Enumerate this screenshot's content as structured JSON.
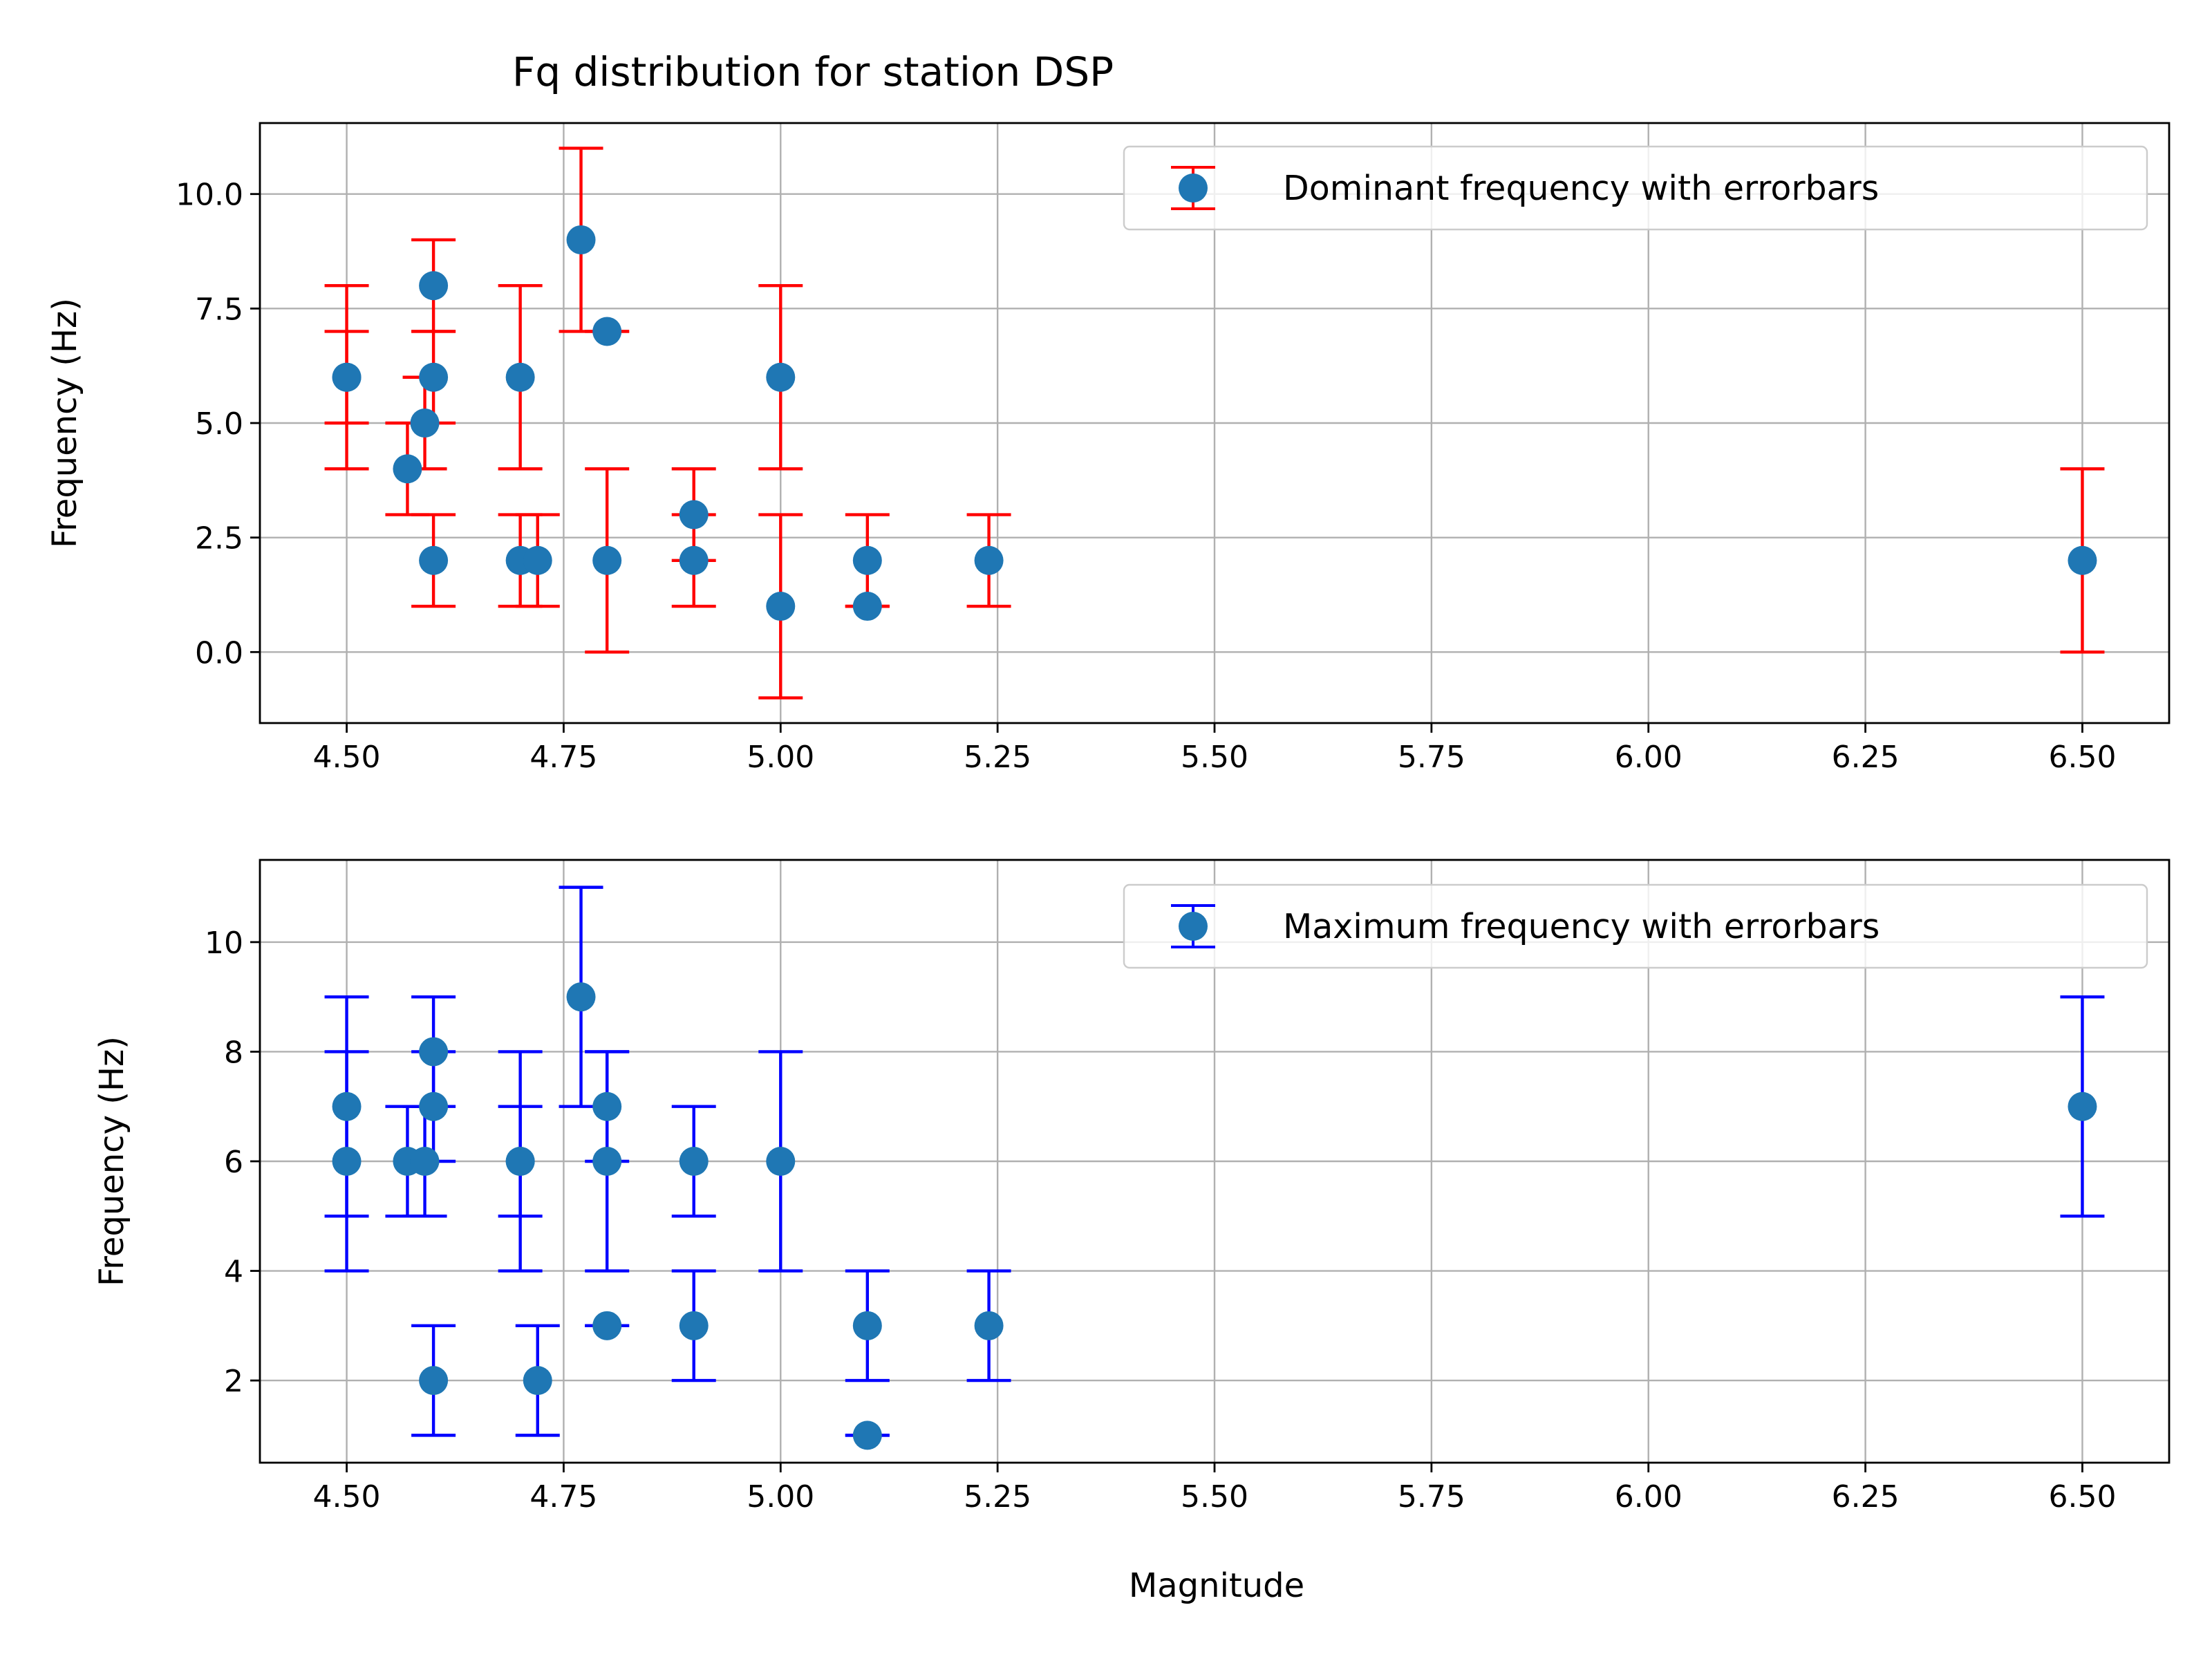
{
  "chart_data": [
    {
      "type": "scatter",
      "title": "Fq distribution for station DSP",
      "xlabel": "",
      "ylabel": "Frequency (Hz)",
      "xlim": [
        4.4,
        6.6
      ],
      "ylim": [
        -1.55,
        11.55
      ],
      "xticks": [
        4.5,
        4.75,
        5.0,
        5.25,
        5.5,
        5.75,
        6.0,
        6.25,
        6.5
      ],
      "xtick_labels": [
        "4.50",
        "4.75",
        "5.00",
        "5.25",
        "5.50",
        "5.75",
        "6.00",
        "6.25",
        "6.50"
      ],
      "yticks": [
        0,
        2.5,
        5,
        7.5,
        10
      ],
      "ytick_labels": [
        "0.0",
        "2.5",
        "5.0",
        "7.5",
        "10.0"
      ],
      "grid": true,
      "legend": {
        "position": "top-right"
      },
      "series": [
        {
          "name": "Dominant frequency with errorbars",
          "marker_color": "#1f77b4",
          "errorbar_color": "#ff0000",
          "points": [
            {
              "x": 4.5,
              "y": 6,
              "ylow": 4,
              "yhigh": 8
            },
            {
              "x": 4.5,
              "y": 6,
              "ylow": 5,
              "yhigh": 7
            },
            {
              "x": 4.57,
              "y": 4,
              "ylow": 3,
              "yhigh": 5
            },
            {
              "x": 4.59,
              "y": 5,
              "ylow": 4,
              "yhigh": 6
            },
            {
              "x": 4.6,
              "y": 8,
              "ylow": 7,
              "yhigh": 9
            },
            {
              "x": 4.6,
              "y": 6,
              "ylow": 5,
              "yhigh": 7
            },
            {
              "x": 4.6,
              "y": 2,
              "ylow": 1,
              "yhigh": 3
            },
            {
              "x": 4.7,
              "y": 6,
              "ylow": 4,
              "yhigh": 8
            },
            {
              "x": 4.7,
              "y": 2,
              "ylow": 1,
              "yhigh": 3
            },
            {
              "x": 4.72,
              "y": 2,
              "ylow": 1,
              "yhigh": 3
            },
            {
              "x": 4.77,
              "y": 9,
              "ylow": 7,
              "yhigh": 11
            },
            {
              "x": 4.8,
              "y": 7,
              "ylow": 7,
              "yhigh": 7
            },
            {
              "x": 4.8,
              "y": 2,
              "ylow": 0,
              "yhigh": 4
            },
            {
              "x": 4.9,
              "y": 3,
              "ylow": 2,
              "yhigh": 4
            },
            {
              "x": 4.9,
              "y": 2,
              "ylow": 1,
              "yhigh": 3
            },
            {
              "x": 5.0,
              "y": 6,
              "ylow": 4,
              "yhigh": 8
            },
            {
              "x": 5.0,
              "y": 1,
              "ylow": -1,
              "yhigh": 3
            },
            {
              "x": 5.1,
              "y": 2,
              "ylow": 1,
              "yhigh": 3
            },
            {
              "x": 5.1,
              "y": 1,
              "ylow": 1,
              "yhigh": 1
            },
            {
              "x": 5.24,
              "y": 2,
              "ylow": 1,
              "yhigh": 3
            },
            {
              "x": 6.5,
              "y": 2,
              "ylow": 0,
              "yhigh": 4
            }
          ]
        }
      ]
    },
    {
      "type": "scatter",
      "title": "",
      "xlabel": "Magnitude",
      "ylabel": "Frequency (Hz)",
      "xlim": [
        4.4,
        6.6
      ],
      "ylim": [
        0.5,
        11.5
      ],
      "xticks": [
        4.5,
        4.75,
        5.0,
        5.25,
        5.5,
        5.75,
        6.0,
        6.25,
        6.5
      ],
      "xtick_labels": [
        "4.50",
        "4.75",
        "5.00",
        "5.25",
        "5.50",
        "5.75",
        "6.00",
        "6.25",
        "6.50"
      ],
      "yticks": [
        2,
        4,
        6,
        8,
        10
      ],
      "ytick_labels": [
        "2",
        "4",
        "6",
        "8",
        "10"
      ],
      "grid": true,
      "legend": {
        "position": "top-right"
      },
      "series": [
        {
          "name": "Maximum frequency with errorbars",
          "marker_color": "#1f77b4",
          "errorbar_color": "#0000ff",
          "points": [
            {
              "x": 4.5,
              "y": 7,
              "ylow": 5,
              "yhigh": 9
            },
            {
              "x": 4.5,
              "y": 6,
              "ylow": 4,
              "yhigh": 8
            },
            {
              "x": 4.57,
              "y": 6,
              "ylow": 5,
              "yhigh": 7
            },
            {
              "x": 4.59,
              "y": 6,
              "ylow": 5,
              "yhigh": 7
            },
            {
              "x": 4.6,
              "y": 8,
              "ylow": 7,
              "yhigh": 9
            },
            {
              "x": 4.6,
              "y": 7,
              "ylow": 6,
              "yhigh": 8
            },
            {
              "x": 4.6,
              "y": 2,
              "ylow": 1,
              "yhigh": 3
            },
            {
              "x": 4.7,
              "y": 6,
              "ylow": 5,
              "yhigh": 7
            },
            {
              "x": 4.7,
              "y": 6,
              "ylow": 4,
              "yhigh": 8
            },
            {
              "x": 4.72,
              "y": 2,
              "ylow": 1,
              "yhigh": 3
            },
            {
              "x": 4.77,
              "y": 9,
              "ylow": 7,
              "yhigh": 11
            },
            {
              "x": 4.8,
              "y": 7,
              "ylow": 6,
              "yhigh": 8
            },
            {
              "x": 4.8,
              "y": 6,
              "ylow": 4,
              "yhigh": 8
            },
            {
              "x": 4.8,
              "y": 3,
              "ylow": 3,
              "yhigh": 3
            },
            {
              "x": 4.9,
              "y": 6,
              "ylow": 5,
              "yhigh": 7
            },
            {
              "x": 4.9,
              "y": 3,
              "ylow": 2,
              "yhigh": 4
            },
            {
              "x": 5.0,
              "y": 6,
              "ylow": 4,
              "yhigh": 8
            },
            {
              "x": 5.1,
              "y": 3,
              "ylow": 2,
              "yhigh": 4
            },
            {
              "x": 5.1,
              "y": 1,
              "ylow": 1,
              "yhigh": 1
            },
            {
              "x": 5.24,
              "y": 3,
              "ylow": 2,
              "yhigh": 4
            },
            {
              "x": 6.5,
              "y": 7,
              "ylow": 5,
              "yhigh": 9
            }
          ]
        }
      ]
    }
  ]
}
